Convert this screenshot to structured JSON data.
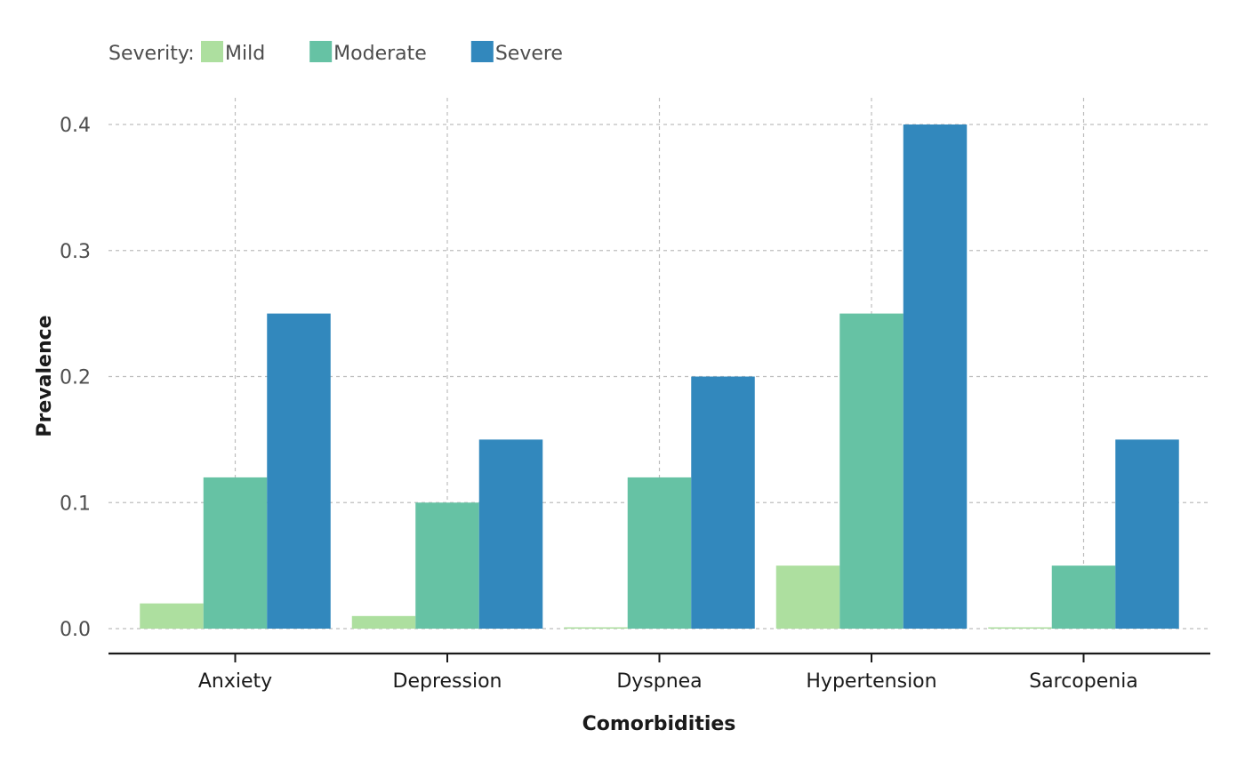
{
  "chart_data": {
    "type": "bar",
    "xlabel": "Comorbidities",
    "ylabel": "Prevalence",
    "categories": [
      "Anxiety",
      "Depression",
      "Dyspnea",
      "Hypertension",
      "Sarcopenia"
    ],
    "series": [
      {
        "name": "Mild",
        "color": "#addf9f",
        "values": [
          0.02,
          0.01,
          0.0,
          0.05,
          0.0
        ]
      },
      {
        "name": "Moderate",
        "color": "#66c2a4",
        "values": [
          0.12,
          0.1,
          0.12,
          0.25,
          0.05
        ]
      },
      {
        "name": "Severe",
        "color": "#3288bd",
        "values": [
          0.25,
          0.15,
          0.2,
          0.4,
          0.15
        ]
      }
    ],
    "ylim": [
      0,
      0.4
    ],
    "yticks": [
      "0.0",
      "0.1",
      "0.2",
      "0.3",
      "0.4"
    ],
    "grid": true,
    "legend": {
      "title": "Severity:",
      "position": "top-left"
    }
  }
}
